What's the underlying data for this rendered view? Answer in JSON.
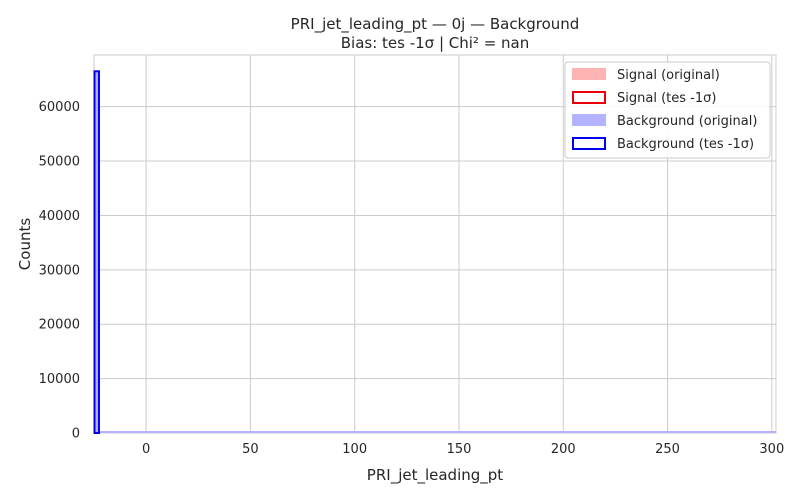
{
  "chart_data": {
    "type": "histogram",
    "title": "PRI_jet_leading_pt — 0j — Background",
    "subtitle": "Bias: tes -1σ | Chi² = nan",
    "xlabel": "PRI_jet_leading_pt",
    "ylabel": "Counts",
    "xlim": [
      -25,
      302
    ],
    "ylim": [
      0,
      69500
    ],
    "xticks": [
      0,
      50,
      100,
      150,
      200,
      250,
      300
    ],
    "yticks": [
      0,
      10000,
      20000,
      30000,
      40000,
      50000,
      60000
    ],
    "grid": true,
    "legend_position": "top-right",
    "series": [
      {
        "name": "Signal (original)",
        "style": "filled",
        "color": "#ffb3b3",
        "x": [],
        "values": []
      },
      {
        "name": "Signal (tes -1σ)",
        "style": "step",
        "color": "#e8000b",
        "x": [],
        "values": []
      },
      {
        "name": "Background (original)",
        "style": "filled",
        "color": "#b3b3ff",
        "x": [
          -25,
          302
        ],
        "values": [
          66500,
          0
        ]
      },
      {
        "name": "Background (tes -1σ)",
        "style": "step",
        "color": "#0000ee",
        "x": [
          -25,
          302
        ],
        "values": [
          66500,
          0
        ]
      }
    ]
  }
}
